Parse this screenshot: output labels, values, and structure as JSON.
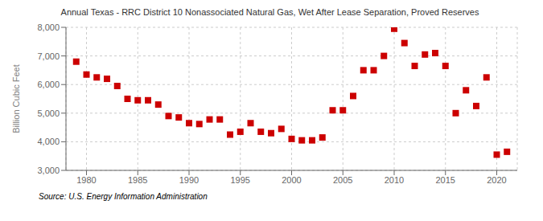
{
  "chart_data": {
    "type": "scatter",
    "title": "Annual Texas - RRC District 10 Nonassociated Natural Gas, Wet After Lease Separation, Proved Reserves",
    "ylabel": "Billion Cubic Feet",
    "annotations": [
      "Source: U.S. Energy Information Administration"
    ],
    "color": "#cc0000",
    "marker": "square",
    "grid": true,
    "xlim": [
      1978,
      2022
    ],
    "xticks": [
      1980,
      1985,
      1990,
      1995,
      2000,
      2005,
      2010,
      2015,
      2020
    ],
    "ylim": [
      3000,
      8000
    ],
    "yticks": [
      {
        "value": 3000,
        "label": "3,000"
      },
      {
        "value": 4000,
        "label": "4,000"
      },
      {
        "value": 5000,
        "label": "5,000"
      },
      {
        "value": 6000,
        "label": "6,000"
      },
      {
        "value": 7000,
        "label": "7,000"
      },
      {
        "value": 8000,
        "label": "8,000"
      }
    ],
    "x": [
      1979,
      1980,
      1981,
      1982,
      1983,
      1984,
      1985,
      1986,
      1987,
      1988,
      1989,
      1990,
      1991,
      1992,
      1993,
      1994,
      1995,
      1996,
      1997,
      1998,
      1999,
      2000,
      2001,
      2002,
      2003,
      2004,
      2005,
      2006,
      2007,
      2008,
      2009,
      2010,
      2011,
      2012,
      2013,
      2014,
      2015,
      2016,
      2017,
      2018,
      2019,
      2020,
      2021
    ],
    "values": [
      6800,
      6350,
      6250,
      6200,
      5950,
      5500,
      5450,
      5450,
      5300,
      4900,
      4850,
      4650,
      4620,
      4780,
      4780,
      4250,
      4350,
      4650,
      4350,
      4300,
      4450,
      4100,
      4050,
      4050,
      4150,
      5100,
      5100,
      5600,
      6500,
      6500,
      7000,
      7950,
      7450,
      6650,
      7050,
      7100,
      6650,
      5000,
      5800,
      5250,
      6250,
      3550,
      3650
    ]
  }
}
